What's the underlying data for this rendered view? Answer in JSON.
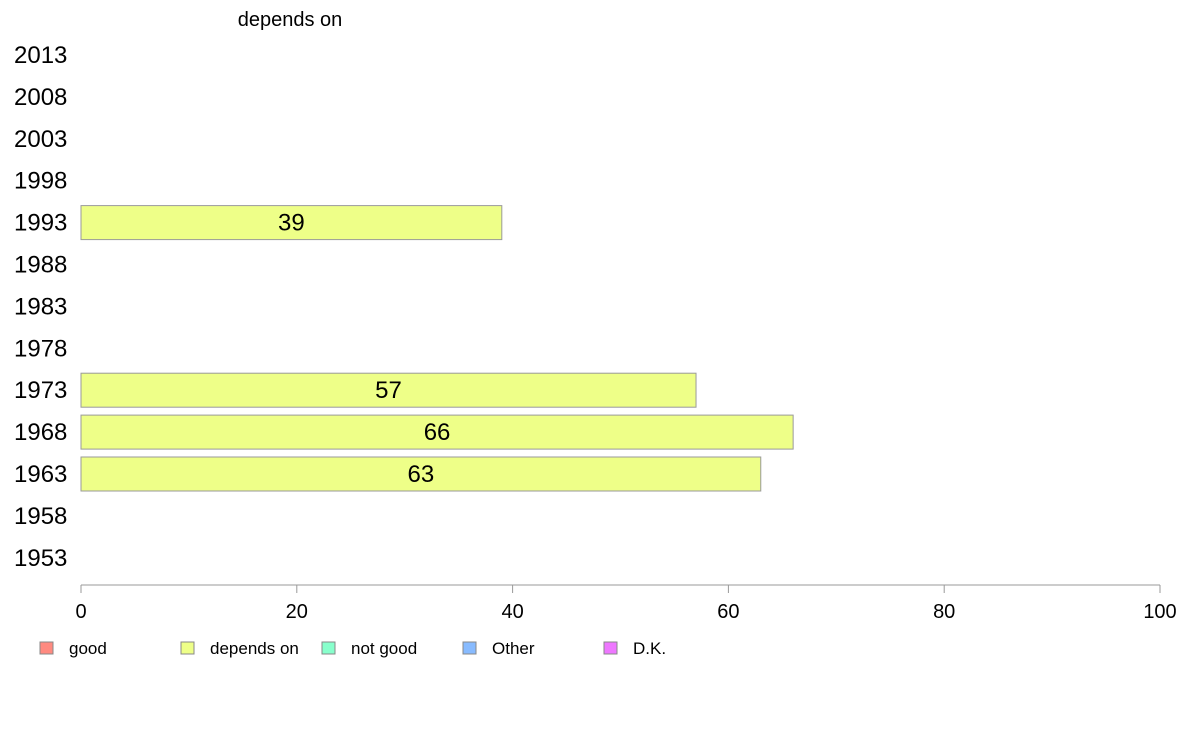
{
  "chart_data": {
    "type": "bar",
    "orientation": "horizontal",
    "title": "depends on",
    "categories": [
      "2013",
      "2008",
      "2003",
      "1998",
      "1993",
      "1988",
      "1983",
      "1978",
      "1973",
      "1968",
      "1963",
      "1958",
      "1953"
    ],
    "series": [
      {
        "name": "depends on",
        "color": "#eeff88",
        "values": [
          null,
          null,
          null,
          null,
          39,
          null,
          null,
          null,
          57,
          66,
          63,
          null,
          null
        ]
      }
    ],
    "xlim": [
      0,
      100
    ],
    "xticks": [
      0,
      20,
      40,
      60,
      80,
      100
    ],
    "grid": false,
    "legend_position": "bottom",
    "legend": [
      {
        "label": "good",
        "color": "#ff8a80"
      },
      {
        "label": "depends on",
        "color": "#eeff88"
      },
      {
        "label": "not good",
        "color": "#88ffcc"
      },
      {
        "label": "Other",
        "color": "#88bbff"
      },
      {
        "label": "D.K.",
        "color": "#ee77ff"
      }
    ]
  }
}
